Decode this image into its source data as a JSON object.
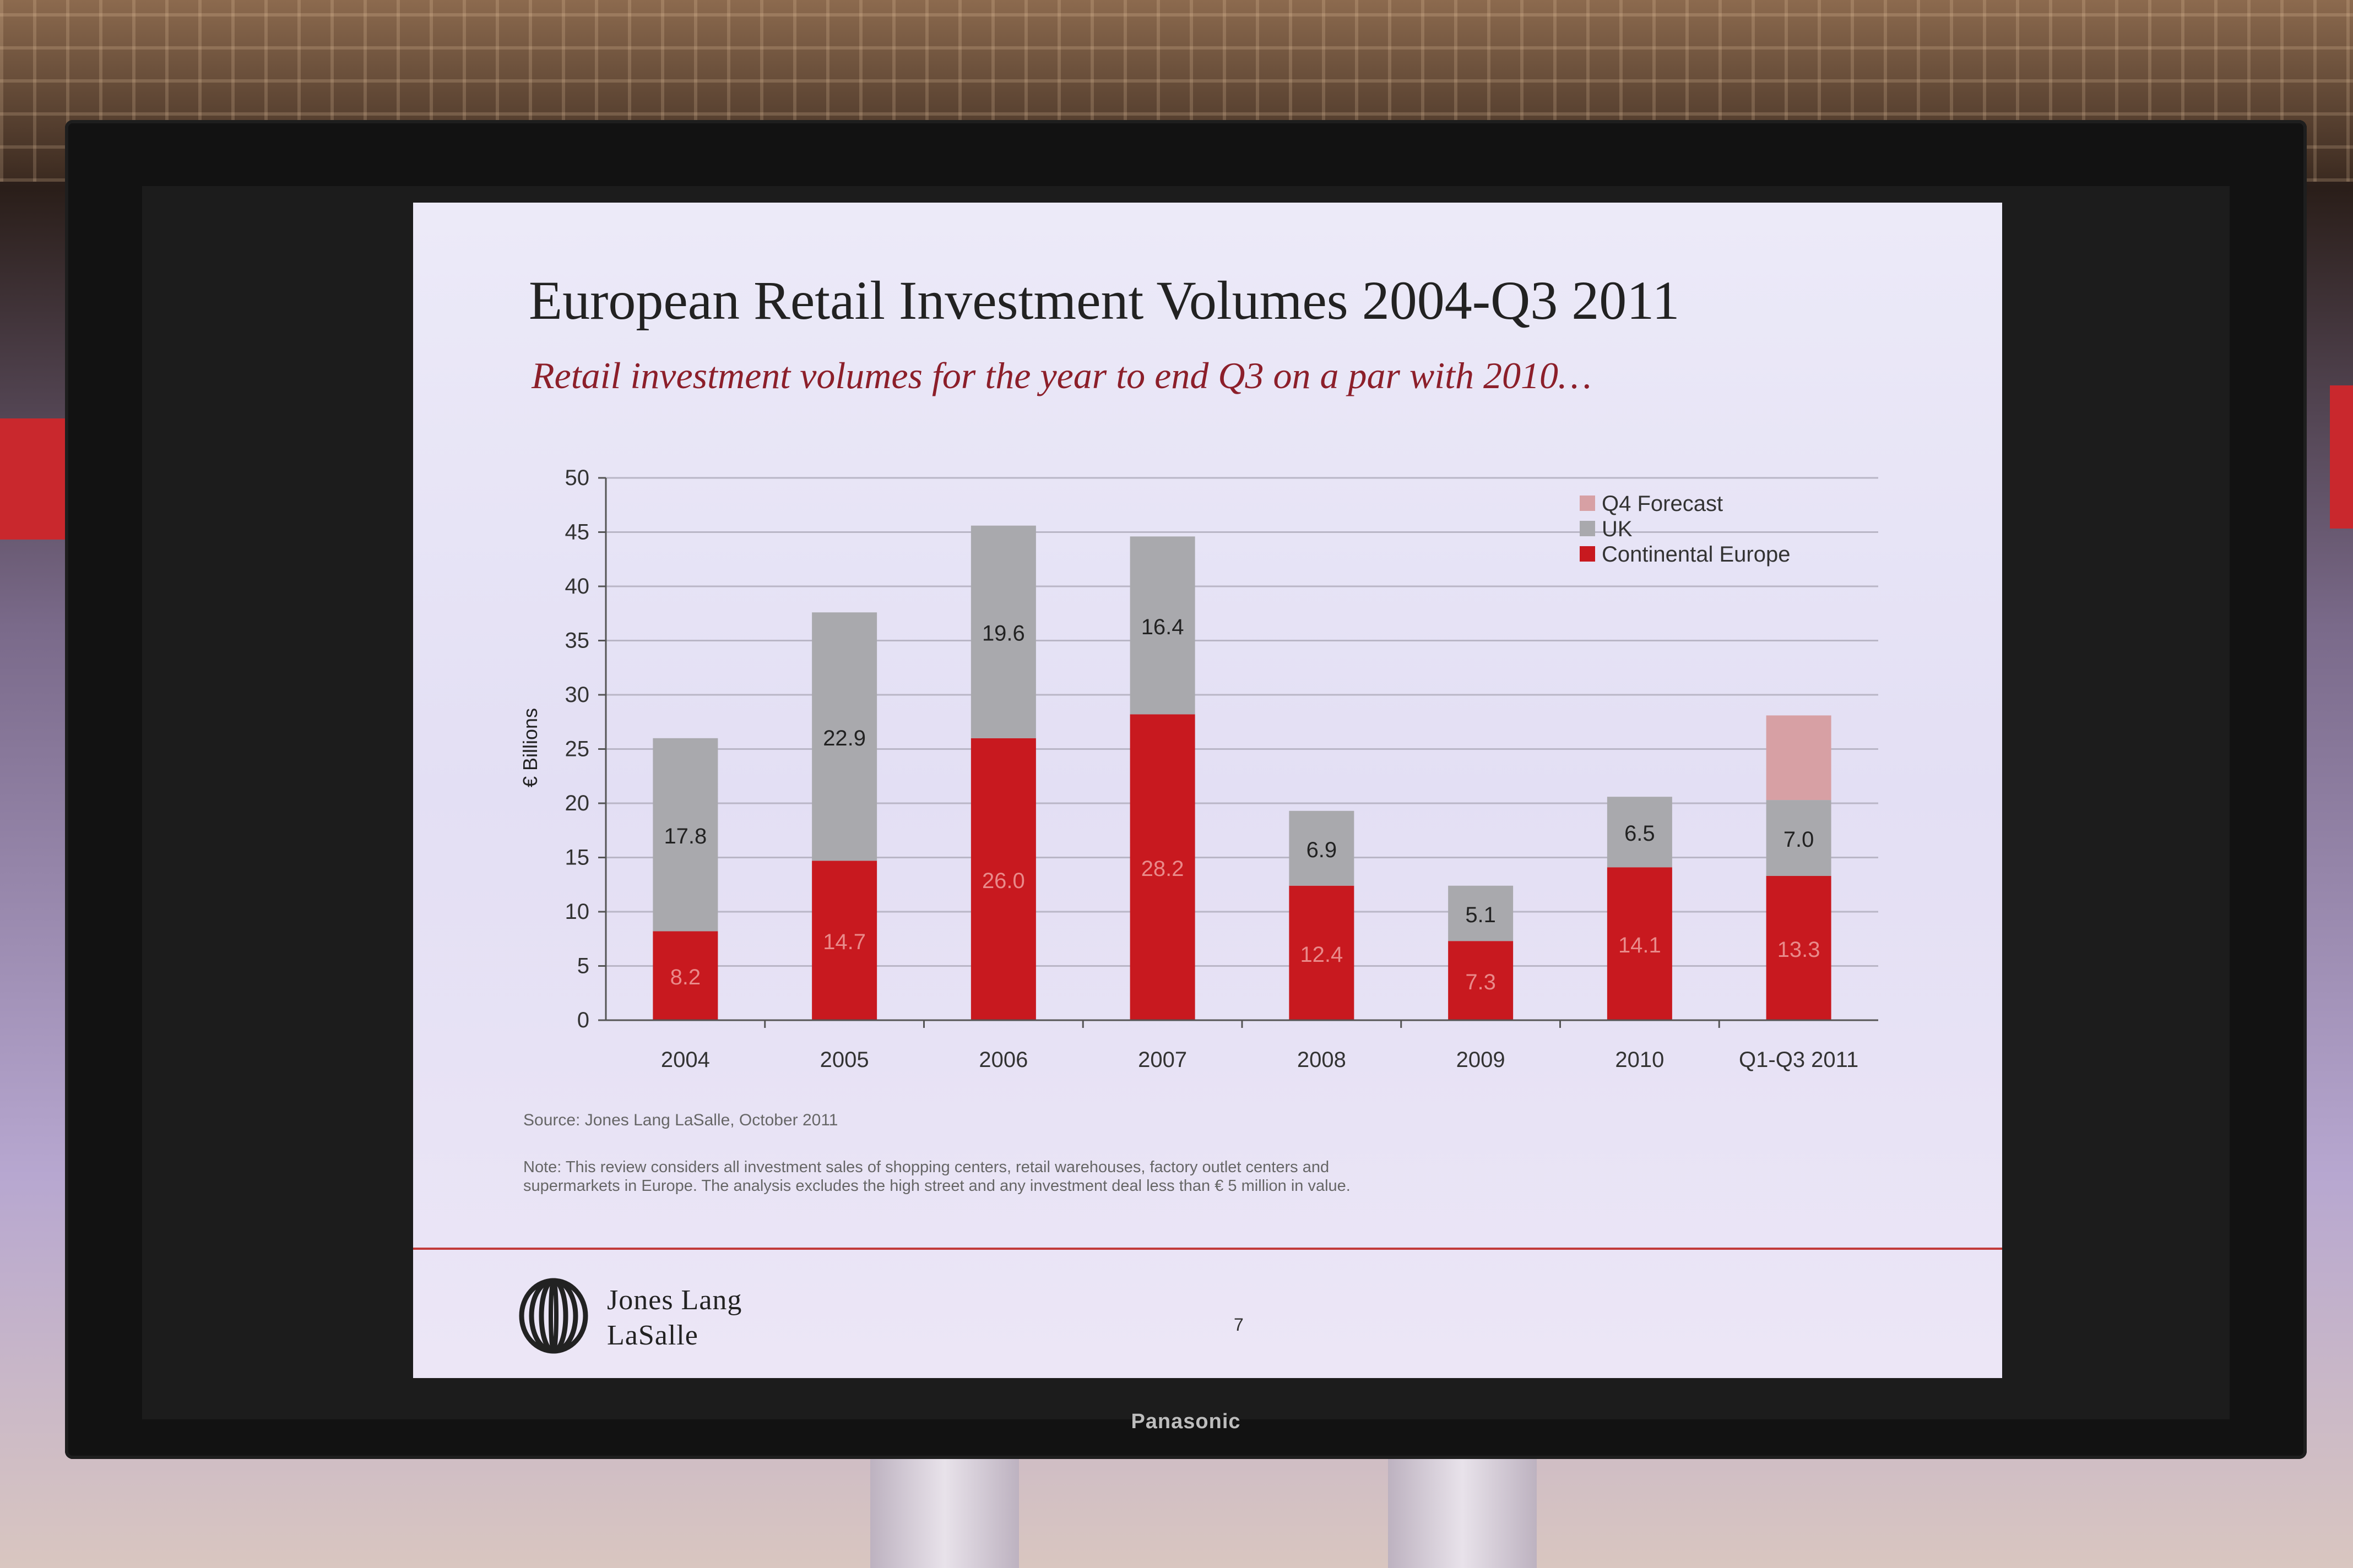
{
  "slide": {
    "title": "European Retail Investment Volumes 2004-Q3 2011",
    "subtitle": "Retail investment volumes for the year to end Q3 on a par with 2010…",
    "source": "Source: Jones Lang LaSalle, October 2011",
    "note": "Note: This review considers all investment sales of shopping centers, retail warehouses, factory outlet centers and supermarkets in Europe. The analysis excludes the high street and any investment deal less than € 5 million in value.",
    "logo_line1": "Jones Lang",
    "logo_line2": "LaSalle",
    "page_number": "7"
  },
  "monitor": {
    "brand": "Panasonic"
  },
  "chart_data": {
    "type": "bar",
    "stacked": true,
    "categories": [
      "2004",
      "2005",
      "2006",
      "2007",
      "2008",
      "2009",
      "2010",
      "Q1-Q3 2011"
    ],
    "series": [
      {
        "name": "Continental Europe",
        "color": "#c8191f",
        "values": [
          8.2,
          14.7,
          26.0,
          28.2,
          12.4,
          7.3,
          14.1,
          13.3
        ],
        "labels": [
          "8.2",
          "14.7",
          "26.0",
          "28.2",
          "12.4",
          "7.3",
          "14.1",
          "13.3"
        ]
      },
      {
        "name": "UK",
        "color": "#a9a9ad",
        "values": [
          17.8,
          22.9,
          19.6,
          16.4,
          6.9,
          5.1,
          6.5,
          7.0
        ],
        "labels": [
          "17.8",
          "22.9",
          "19.6",
          "16.4",
          "6.9",
          "5.1",
          "6.5",
          "7.0"
        ]
      },
      {
        "name": "Q4 Forecast",
        "color": "#d7a0a4",
        "values": [
          0,
          0,
          0,
          0,
          0,
          0,
          0,
          7.8
        ],
        "labels": [
          "",
          "",
          "",
          "",
          "",
          "",
          "",
          ""
        ]
      }
    ],
    "ylabel": "€ Billions",
    "ylim": [
      0,
      50
    ],
    "yticks": [
      "0",
      "5",
      "10",
      "15",
      "20",
      "25",
      "30",
      "35",
      "40",
      "45",
      "50"
    ],
    "grid": true,
    "legend_position": "top-right",
    "legend_order": [
      "Q4 Forecast",
      "UK",
      "Continental Europe"
    ]
  }
}
